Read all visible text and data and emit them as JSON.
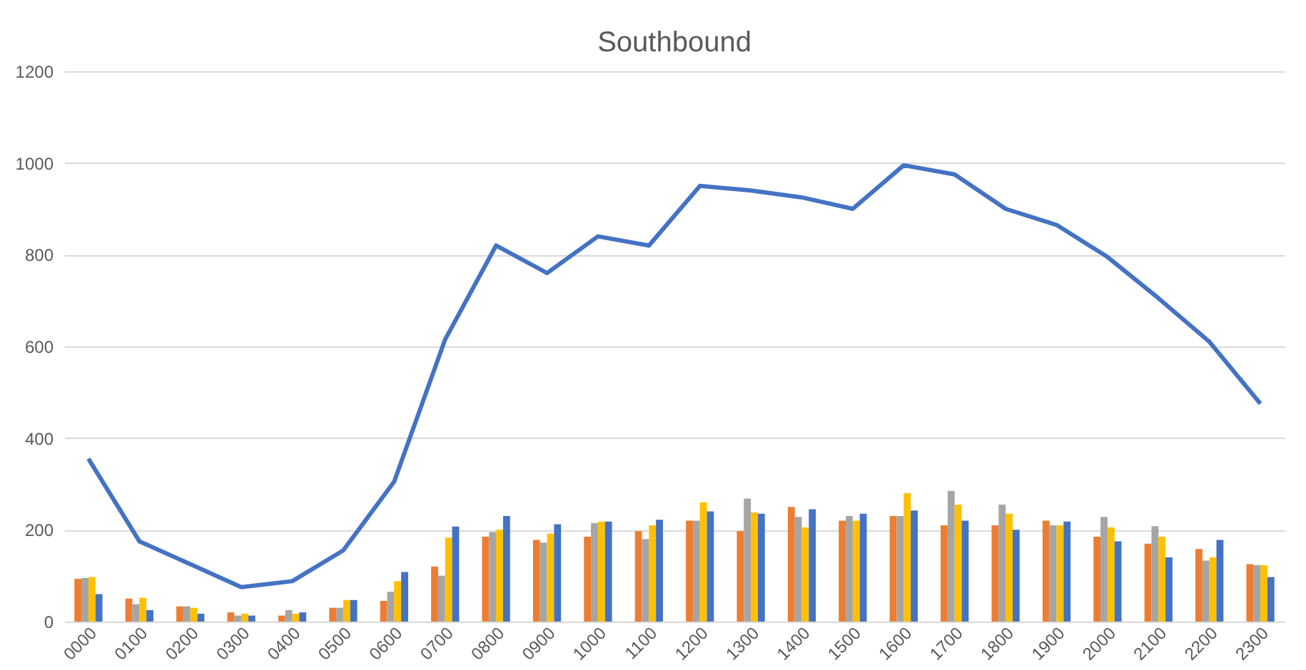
{
  "chart_data": {
    "type": "bar",
    "title": "Southbound",
    "categories": [
      "0000",
      "0100",
      "0200",
      "0300",
      "0400",
      "0500",
      "0600",
      "0700",
      "0800",
      "0900",
      "1000",
      "1100",
      "1200",
      "1300",
      "1400",
      "1500",
      "1600",
      "1700",
      "1800",
      "1900",
      "2000",
      "2100",
      "2200",
      "2300"
    ],
    "series": [
      {
        "color": "#ed7d31",
        "values": [
          93,
          50,
          33,
          20,
          13,
          30,
          45,
          120,
          185,
          178,
          185,
          197,
          220,
          197,
          250,
          220,
          230,
          210,
          210,
          220,
          185,
          170,
          158,
          125
        ]
      },
      {
        "color": "#a5a5a5",
        "values": [
          95,
          38,
          33,
          13,
          25,
          30,
          65,
          100,
          195,
          172,
          215,
          180,
          220,
          268,
          228,
          230,
          230,
          285,
          255,
          210,
          228,
          208,
          133,
          123
        ]
      },
      {
        "color": "#ffc000",
        "values": [
          97,
          52,
          30,
          17,
          17,
          47,
          88,
          183,
          200,
          192,
          218,
          210,
          260,
          238,
          205,
          220,
          280,
          255,
          235,
          210,
          205,
          185,
          140,
          123
        ]
      },
      {
        "color": "#4472c4",
        "values": [
          60,
          25,
          17,
          13,
          20,
          47,
          108,
          207,
          230,
          212,
          218,
          222,
          240,
          235,
          245,
          235,
          242,
          220,
          200,
          218,
          175,
          140,
          178,
          97
        ]
      },
      {
        "type": "line",
        "color": "#4472c4",
        "values": [
          355,
          175,
          125,
          75,
          88,
          155,
          305,
          615,
          820,
          760,
          840,
          820,
          950,
          940,
          925,
          900,
          995,
          975,
          900,
          865,
          795,
          705,
          610,
          475
        ]
      }
    ],
    "ylim": [
      0,
      1200
    ],
    "yticks": [
      0,
      200,
      400,
      600,
      800,
      1000,
      1200
    ],
    "grid": "y",
    "legend": false,
    "marker": "none",
    "line_style": "solid"
  }
}
